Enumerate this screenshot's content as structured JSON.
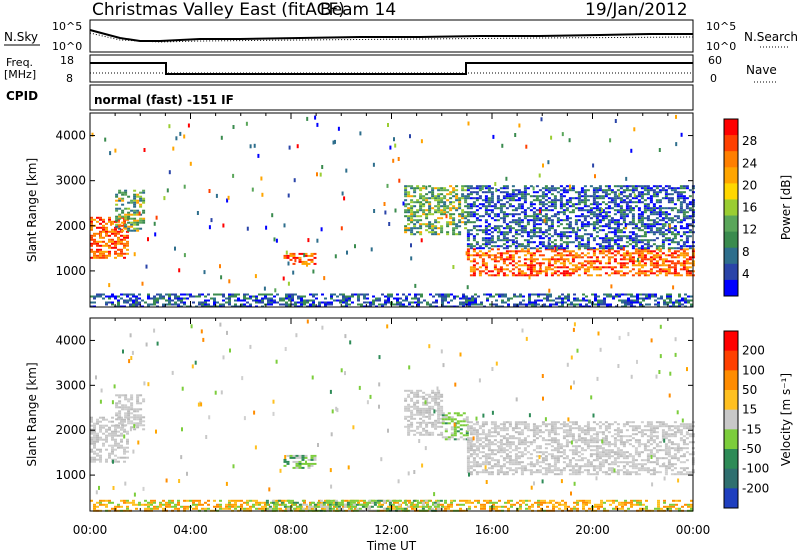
{
  "header": {
    "title": "Christmas Valley East (fitACF)",
    "beam": "Beam 14",
    "date": "19/Jan/2012"
  },
  "summary_panels": {
    "nsky_label": "N.Sky",
    "nsky_ticks": [
      "10^5",
      "10^0"
    ],
    "nsearch_label": "N.Search",
    "nsearch_ticks": [
      "10^5",
      "10^0"
    ],
    "freq_label_top": "Freq.",
    "freq_label_unit": "[MHz]",
    "freq_ticks": [
      "18",
      "8"
    ],
    "nave_label": "Nave",
    "nave_ticks": [
      "60",
      "0"
    ],
    "cpid_label": "CPID",
    "cpid_text": "normal (fast) -151 IF"
  },
  "chart_data": [
    {
      "type": "heatmap",
      "name": "power-panel",
      "ylabel": "Slant Range [km]",
      "yticks": [
        "4000",
        "3000",
        "2000",
        "1000"
      ],
      "ylim": [
        200,
        4500
      ],
      "xlim": [
        0,
        24
      ],
      "colorbar_label": "Power [dB]",
      "colorbar_ticks": [
        "28",
        "24",
        "20",
        "16",
        "12",
        "8",
        "4"
      ],
      "colorbar_colors": [
        "#0000ff",
        "#2a44a8",
        "#2e6e8c",
        "#3a8b4e",
        "#5aa65a",
        "#9acd32",
        "#ffd700",
        "#ffa500",
        "#ff7f00",
        "#ff4000",
        "#ff0000"
      ],
      "regions": [
        {
          "t": [
            0.0,
            1.5
          ],
          "r": [
            1300,
            2200
          ],
          "level": "high"
        },
        {
          "t": [
            1.0,
            2.1
          ],
          "r": [
            1900,
            2800
          ],
          "level": "mid"
        },
        {
          "t": [
            7.7,
            9.0
          ],
          "r": [
            1150,
            1400
          ],
          "level": "high"
        },
        {
          "t": [
            12.5,
            15.0
          ],
          "r": [
            1800,
            2900
          ],
          "level": "mid"
        },
        {
          "t": [
            15.0,
            24.0
          ],
          "r": [
            900,
            1500
          ],
          "level": "high"
        },
        {
          "t": [
            15.0,
            24.0
          ],
          "r": [
            1500,
            2900
          ],
          "level": "low"
        },
        {
          "t": [
            0.0,
            24.0
          ],
          "r": [
            200,
            500
          ],
          "level": "low"
        }
      ]
    },
    {
      "type": "heatmap",
      "name": "velocity-panel",
      "ylabel": "Slant Range [km]",
      "yticks": [
        "4000",
        "3000",
        "2000",
        "1000"
      ],
      "ylim": [
        200,
        4500
      ],
      "xlim": [
        0,
        24
      ],
      "xticks": [
        "00:00",
        "04:00",
        "08:00",
        "12:00",
        "16:00",
        "20:00",
        "00:00"
      ],
      "xlabel": "Time UT",
      "colorbar_label": "Velocity [m s⁻¹]",
      "colorbar_ticks": [
        "200",
        "100",
        "50",
        "15",
        "-15",
        "-50",
        "-100",
        "-200"
      ],
      "colorbar_colors": [
        "#1f3fbf",
        "#2f6f6f",
        "#2e8b57",
        "#7ccd3c",
        "#c8c8c8",
        "#ffc020",
        "#ff8c00",
        "#ff4000",
        "#ff0000"
      ],
      "regions": [
        {
          "t": [
            0.0,
            1.5
          ],
          "r": [
            1300,
            2300
          ],
          "level": "grey"
        },
        {
          "t": [
            1.0,
            2.1
          ],
          "r": [
            2000,
            2800
          ],
          "level": "grey"
        },
        {
          "t": [
            7.7,
            9.0
          ],
          "r": [
            1150,
            1450
          ],
          "level": "green"
        },
        {
          "t": [
            12.5,
            14.0
          ],
          "r": [
            1900,
            2900
          ],
          "level": "grey"
        },
        {
          "t": [
            14.0,
            15.0
          ],
          "r": [
            1800,
            2400
          ],
          "level": "green"
        },
        {
          "t": [
            15.0,
            24.0
          ],
          "r": [
            1000,
            2200
          ],
          "level": "grey"
        },
        {
          "t": [
            0.0,
            24.0
          ],
          "r": [
            200,
            450
          ],
          "level": "orange"
        },
        {
          "t": [
            7.0,
            14.0
          ],
          "r": [
            200,
            450
          ],
          "level": "green"
        }
      ]
    }
  ]
}
